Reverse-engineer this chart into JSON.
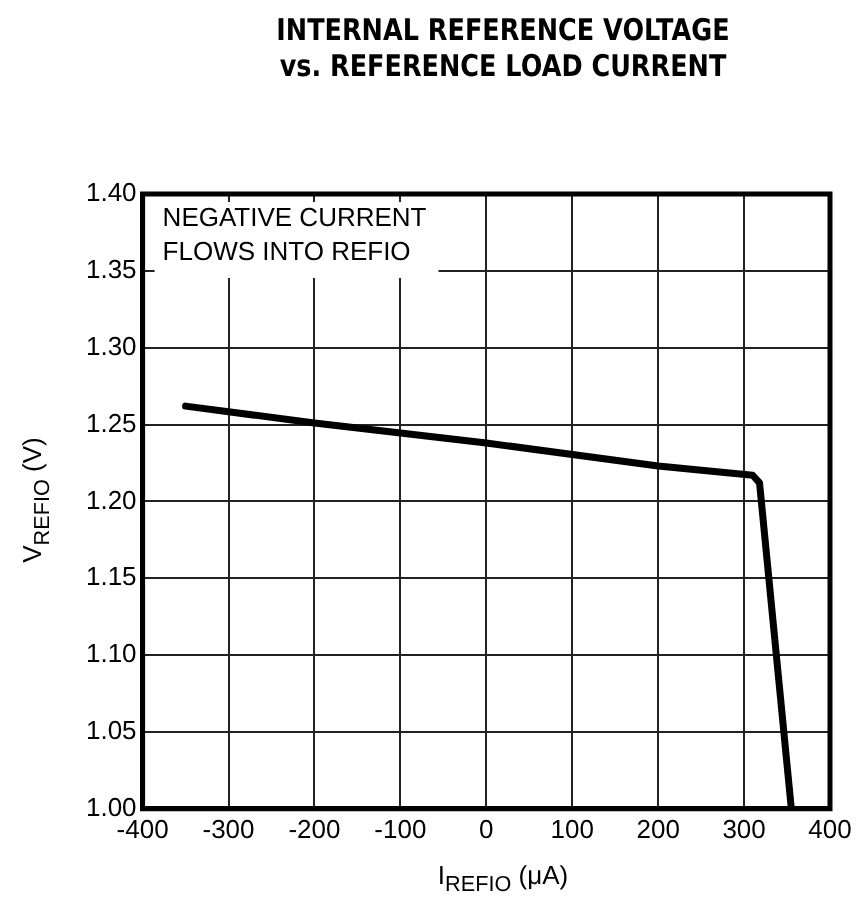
{
  "chart_data": {
    "type": "line",
    "title": "INTERNAL REFERENCE VOLTAGE\nvs. REFERENCE LOAD CURRENT",
    "xlabel": "I$_{REFIO}$ (μA)",
    "ylabel": "V$_{REFIO}$ (V)",
    "annotations": [
      "NEGATIVE CURRENT\nFLOWS INTO REFIO"
    ],
    "series": [
      {
        "color": "#000000",
        "x": [
          -350,
          -200,
          0,
          200,
          310,
          318,
          355
        ],
        "values": [
          1.262,
          1.251,
          1.238,
          1.223,
          1.217,
          1.212,
          1.0
        ]
      }
    ],
    "xlim": [
      -400,
      400
    ],
    "xticks": [
      -400,
      -300,
      -200,
      -100,
      0,
      100,
      200,
      300,
      400
    ],
    "ylim": [
      1.0,
      1.4
    ],
    "yticks": [
      {
        "value": 1.0,
        "label": "1.00"
      },
      {
        "value": 1.05,
        "label": "1.05"
      },
      {
        "value": 1.1,
        "label": "1.10"
      },
      {
        "value": 1.15,
        "label": "1.15"
      },
      {
        "value": 1.2,
        "label": "1.20"
      },
      {
        "value": 1.25,
        "label": "1.25"
      },
      {
        "value": 1.3,
        "label": "1.30"
      },
      {
        "value": 1.35,
        "label": "1.35"
      },
      {
        "value": 1.4,
        "label": "1.40"
      }
    ],
    "grid": true,
    "legend": false,
    "marker": "none",
    "line_style": "solid"
  }
}
